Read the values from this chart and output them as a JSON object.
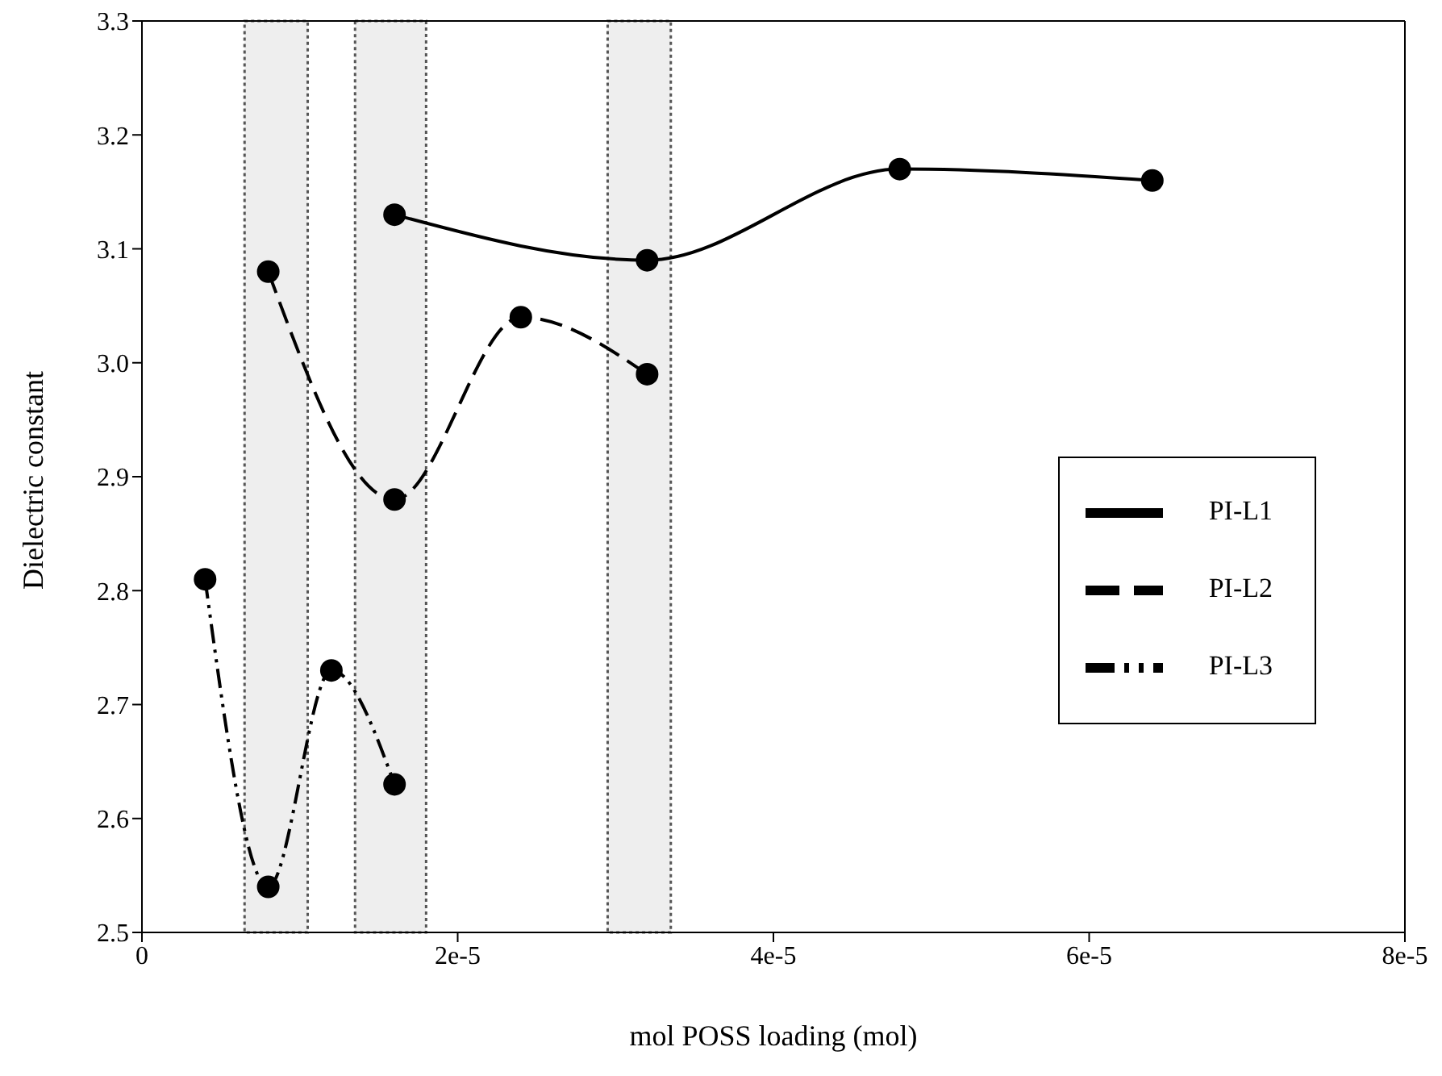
{
  "chart_data": {
    "type": "line",
    "xlabel": "mol POSS loading (mol)",
    "ylabel": "Dielectric constant",
    "xlim": [
      0,
      8e-05
    ],
    "xticks": [
      0,
      {
        "value": 2e-05,
        "label": "2e-5"
      },
      {
        "value": 4e-05,
        "label": "4e-5"
      },
      {
        "value": 6e-05,
        "label": "6e-5"
      },
      {
        "value": 8e-05,
        "label": "8e-5"
      }
    ],
    "ylim": [
      2.5,
      3.3
    ],
    "yticks": [
      2.5,
      2.6,
      2.7,
      2.8,
      2.9,
      {
        "value": 3.0,
        "label": "3.0"
      },
      3.1,
      3.2,
      3.3
    ],
    "grid": false,
    "legend": "right",
    "marker": "circle",
    "series": [
      {
        "name": "PI-L1",
        "color": "#000000",
        "line_style": "solid",
        "x": [
          1.6e-05,
          3.2e-05,
          4.8e-05,
          6.4e-05
        ],
        "values": [
          3.13,
          3.09,
          3.17,
          3.16
        ]
      },
      {
        "name": "PI-L2",
        "color": "#000000",
        "line_style": "dashed",
        "x": [
          8e-06,
          1.6e-05,
          2.4e-05,
          3.2e-05
        ],
        "values": [
          3.08,
          2.88,
          3.04,
          2.99
        ]
      },
      {
        "name": "PI-L3",
        "color": "#000000",
        "line_style": "dotted",
        "x": [
          4e-06,
          8e-06,
          1.2e-05,
          1.6e-05
        ],
        "values": [
          2.81,
          2.54,
          2.73,
          2.63
        ]
      }
    ],
    "bands": [
      {
        "axis": "x",
        "from": 6.5e-06,
        "to": 1.05e-05,
        "color": "#555555"
      },
      {
        "axis": "x",
        "from": 1.35e-05,
        "to": 1.8e-05,
        "color": "#555555"
      },
      {
        "axis": "x",
        "from": 2.95e-05,
        "to": 3.35e-05,
        "color": "#555555"
      }
    ]
  }
}
